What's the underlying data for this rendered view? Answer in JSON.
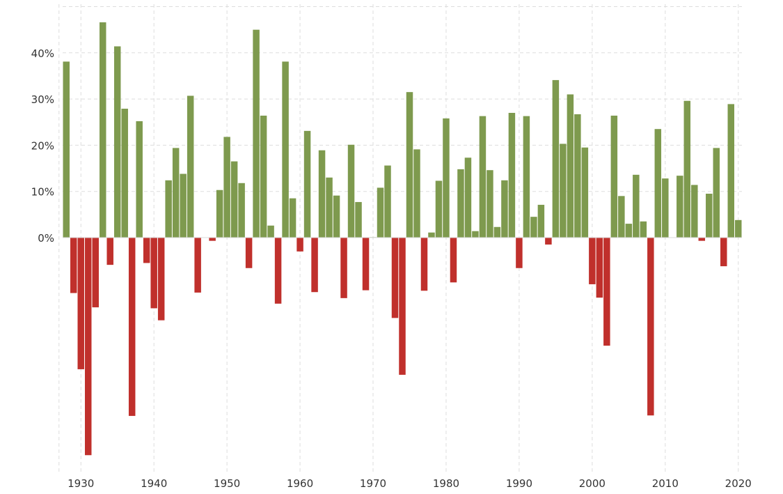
{
  "chart_data": {
    "type": "bar",
    "title": "",
    "xlabel": "",
    "ylabel": "",
    "x": [
      1928,
      1929,
      1930,
      1931,
      1932,
      1933,
      1934,
      1935,
      1936,
      1937,
      1938,
      1939,
      1940,
      1941,
      1942,
      1943,
      1944,
      1945,
      1946,
      1947,
      1948,
      1949,
      1950,
      1951,
      1952,
      1953,
      1954,
      1955,
      1956,
      1957,
      1958,
      1959,
      1960,
      1961,
      1962,
      1963,
      1964,
      1965,
      1966,
      1967,
      1968,
      1969,
      1970,
      1971,
      1972,
      1973,
      1974,
      1975,
      1976,
      1977,
      1978,
      1979,
      1980,
      1981,
      1982,
      1983,
      1984,
      1985,
      1986,
      1987,
      1988,
      1989,
      1990,
      1991,
      1992,
      1993,
      1994,
      1995,
      1996,
      1997,
      1998,
      1999,
      2000,
      2001,
      2002,
      2003,
      2004,
      2005,
      2006,
      2007,
      2008,
      2009,
      2010,
      2011,
      2012,
      2013,
      2014,
      2015,
      2016,
      2017,
      2018,
      2019,
      2020
    ],
    "values": [
      38.1,
      -12.0,
      -28.5,
      -47.1,
      -15.1,
      46.6,
      -5.9,
      41.4,
      27.9,
      -38.6,
      25.2,
      -5.5,
      -15.3,
      -17.9,
      12.4,
      19.4,
      13.8,
      30.7,
      -11.9,
      0.0,
      -0.7,
      10.3,
      21.8,
      16.5,
      11.8,
      -6.6,
      45.0,
      26.4,
      2.6,
      -14.3,
      38.1,
      8.5,
      -3.0,
      23.1,
      -11.8,
      18.9,
      13.0,
      9.1,
      -13.1,
      20.1,
      7.7,
      -11.4,
      0.1,
      10.8,
      15.6,
      -17.4,
      -29.7,
      31.5,
      19.1,
      -11.5,
      1.1,
      12.3,
      25.8,
      -9.7,
      14.8,
      17.3,
      1.4,
      26.3,
      14.6,
      2.3,
      12.4,
      27.0,
      -6.6,
      26.3,
      4.5,
      7.1,
      -1.5,
      34.1,
      20.3,
      31.0,
      26.7,
      19.5,
      -10.1,
      -13.0,
      -23.4,
      26.4,
      9.0,
      3.0,
      13.6,
      3.5,
      -38.5,
      23.5,
      12.8,
      0.0,
      13.4,
      29.6,
      11.4,
      -0.7,
      9.5,
      19.4,
      -6.2,
      28.9,
      3.8
    ],
    "positive_color": "#7e9a4e",
    "negative_color": "#c0302c",
    "ylim": [
      -50,
      50
    ],
    "xlim": [
      1927.5,
      2020.5
    ],
    "y_ticks": [
      {
        "value": 0,
        "label": "0%"
      },
      {
        "value": 10,
        "label": "10%"
      },
      {
        "value": 20,
        "label": "20%"
      },
      {
        "value": 30,
        "label": "30%"
      },
      {
        "value": 40,
        "label": "40%"
      }
    ],
    "y_grid": [
      0,
      10,
      20,
      30,
      40,
      50
    ],
    "x_ticks": [
      {
        "value": 1930,
        "label": "1930"
      },
      {
        "value": 1940,
        "label": "1940"
      },
      {
        "value": 1950,
        "label": "1950"
      },
      {
        "value": 1960,
        "label": "1960"
      },
      {
        "value": 1970,
        "label": "1970"
      },
      {
        "value": 1980,
        "label": "1980"
      },
      {
        "value": 1990,
        "label": "1990"
      },
      {
        "value": 2000,
        "label": "2000"
      },
      {
        "value": 2010,
        "label": "2010"
      },
      {
        "value": 2020,
        "label": "2020"
      }
    ],
    "grid": true,
    "legend": "none"
  }
}
